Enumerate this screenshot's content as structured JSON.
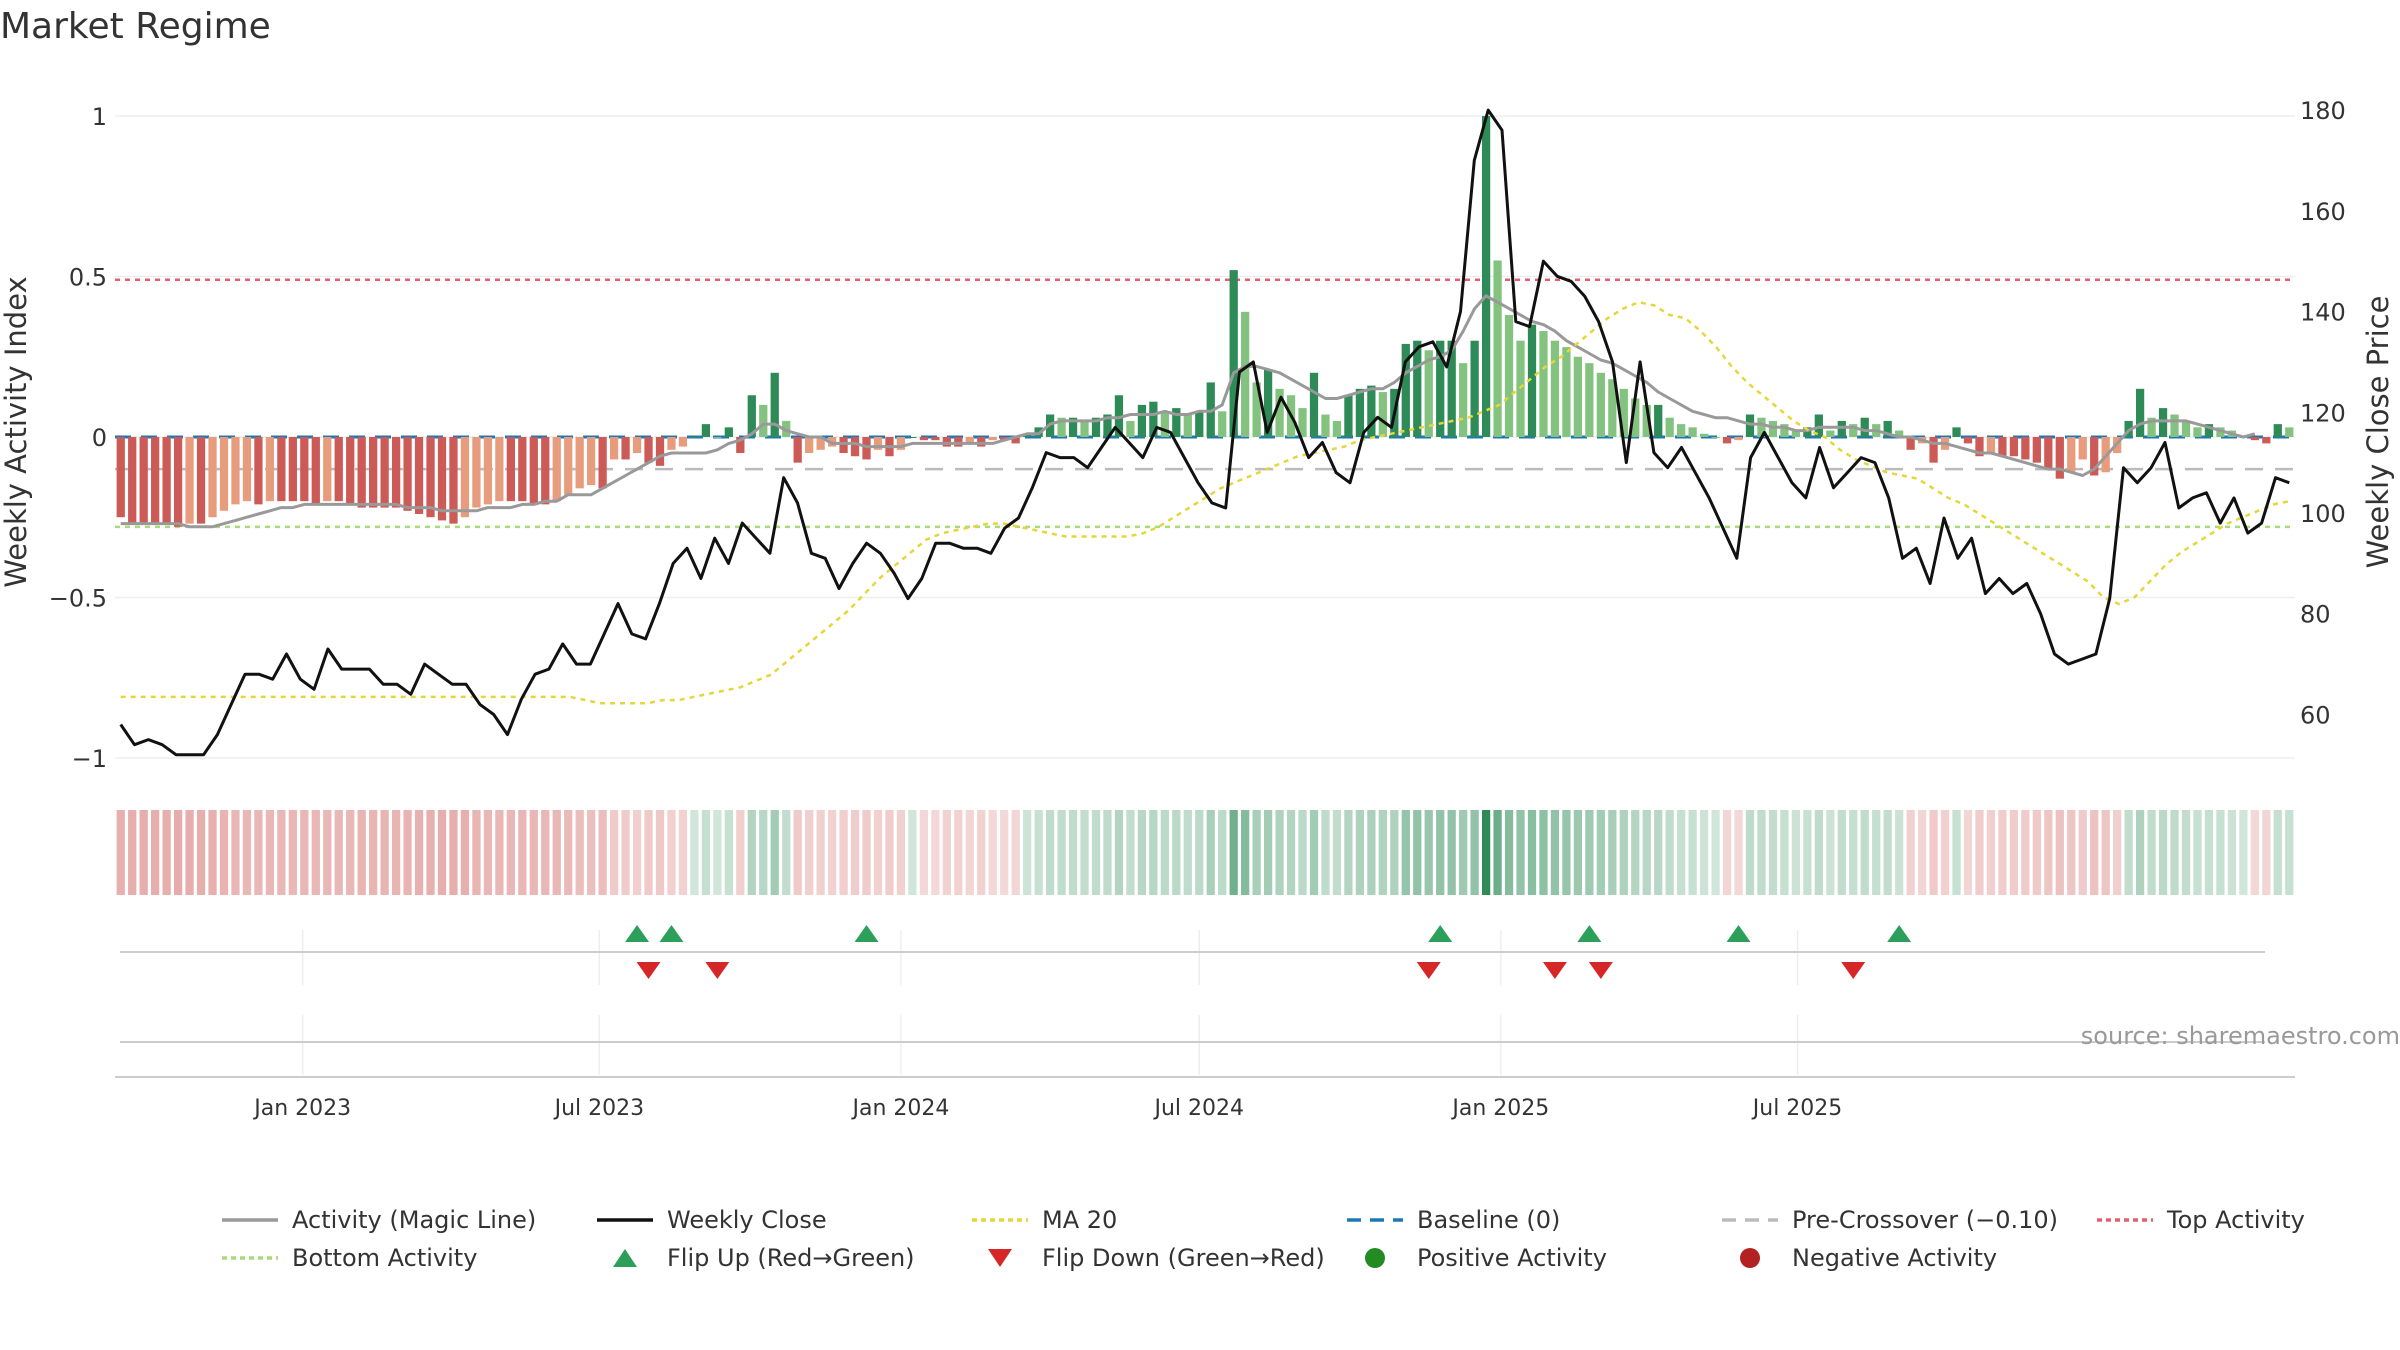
{
  "title": "Market Regime",
  "source": "source: sharemaestro.com",
  "colors": {
    "pos_dark": "#2e8b57",
    "pos_light": "#84c37f",
    "neg_dark": "#cc5a56",
    "neg_light": "#e89c7e",
    "close": "#111111",
    "magic": "#999999",
    "ma20": "#e5d63a",
    "baseline": "#1f77b4",
    "precross": "#bbbbbb",
    "top": "#e06070",
    "bottom": "#a8dc7a",
    "flip_up": "#2ca05a",
    "flip_down": "#d62728",
    "pos_dot": "#228b22",
    "neg_dot": "#b22222"
  },
  "chart_data": {
    "type": "bar",
    "x_start": "2022-09-12",
    "x_step_days": 7,
    "x_ticks": [
      "Jan 2023",
      "Jul 2023",
      "Jan 2024",
      "Jul 2024",
      "Jan 2025",
      "Jul 2025"
    ],
    "y_left": {
      "label": "Weekly Activity Index",
      "range": [
        -1.1,
        1.05
      ],
      "ticks": [
        1,
        0.5,
        0,
        -0.5,
        -1
      ],
      "tick_labels": [
        "1",
        "0.5",
        "0",
        "−0.5",
        "−1"
      ]
    },
    "y_right": {
      "label": "Weekly Close Price",
      "range": [
        45,
        182
      ],
      "ticks": [
        180,
        160,
        140,
        120,
        100,
        80,
        60
      ],
      "tick_labels": [
        "180",
        "160",
        "140",
        "120",
        "100",
        "80",
        "60"
      ]
    },
    "activity": [
      -0.25,
      -0.27,
      -0.27,
      -0.27,
      -0.27,
      -0.28,
      -0.27,
      -0.27,
      -0.25,
      -0.23,
      -0.21,
      -0.2,
      -0.21,
      -0.2,
      -0.2,
      -0.2,
      -0.2,
      -0.21,
      -0.2,
      -0.2,
      -0.21,
      -0.22,
      -0.22,
      -0.22,
      -0.22,
      -0.23,
      -0.24,
      -0.25,
      -0.26,
      -0.27,
      -0.25,
      -0.22,
      -0.21,
      -0.2,
      -0.2,
      -0.2,
      -0.21,
      -0.21,
      -0.2,
      -0.18,
      -0.16,
      -0.15,
      -0.16,
      -0.07,
      -0.07,
      -0.05,
      -0.08,
      -0.09,
      -0.04,
      -0.03,
      0,
      0.04,
      0,
      0.03,
      -0.05,
      0.13,
      0.1,
      0.2,
      0.05,
      -0.08,
      -0.05,
      -0.04,
      -0.03,
      -0.05,
      -0.06,
      -0.07,
      -0.04,
      -0.06,
      -0.04,
      0,
      -0.01,
      -0.01,
      -0.03,
      -0.03,
      -0.02,
      -0.03,
      -0.01,
      -0.01,
      -0.02,
      0.01,
      0.03,
      0.07,
      0.06,
      0.06,
      0.05,
      0.06,
      0.07,
      0.13,
      0.05,
      0.1,
      0.11,
      0.08,
      0.09,
      0.07,
      0.08,
      0.17,
      0.08,
      0.52,
      0.39,
      0.17,
      0.21,
      0.15,
      0.13,
      0.09,
      0.2,
      0.07,
      0.05,
      0.13,
      0.15,
      0.16,
      0.14,
      0.15,
      0.29,
      0.3,
      0.27,
      0.3,
      0.3,
      0.23,
      0.3,
      1.0,
      0.55,
      0.38,
      0.3,
      0.35,
      0.33,
      0.3,
      0.28,
      0.25,
      0.23,
      0.2,
      0.18,
      0.15,
      0.12,
      0.1,
      0.1,
      0.06,
      0.04,
      0.03,
      0.01,
      0,
      -0.02,
      -0.01,
      0.07,
      0.06,
      0.05,
      0.04,
      0.02,
      0.03,
      0.07,
      0.02,
      0.05,
      0.04,
      0.06,
      0.04,
      0.05,
      0.02,
      -0.04,
      -0.02,
      -0.08,
      -0.04,
      0.03,
      -0.02,
      -0.06,
      -0.05,
      -0.06,
      -0.06,
      -0.07,
      -0.08,
      -0.1,
      -0.13,
      -0.11,
      -0.07,
      -0.12,
      -0.11,
      -0.05,
      0.05,
      0.15,
      0.06,
      0.09,
      0.07,
      0.05,
      0.03,
      0.04,
      0.03,
      0.02,
      0,
      -0.01,
      -0.02,
      0.04,
      0.03
    ],
    "magic_line": [
      -0.27,
      -0.27,
      -0.27,
      -0.27,
      -0.27,
      -0.27,
      -0.28,
      -0.28,
      -0.28,
      -0.27,
      -0.26,
      -0.25,
      -0.24,
      -0.23,
      -0.22,
      -0.22,
      -0.21,
      -0.21,
      -0.21,
      -0.21,
      -0.21,
      -0.21,
      -0.21,
      -0.21,
      -0.21,
      -0.22,
      -0.22,
      -0.22,
      -0.23,
      -0.23,
      -0.23,
      -0.23,
      -0.22,
      -0.22,
      -0.22,
      -0.21,
      -0.21,
      -0.2,
      -0.2,
      -0.18,
      -0.18,
      -0.18,
      -0.16,
      -0.14,
      -0.12,
      -0.1,
      -0.08,
      -0.06,
      -0.05,
      -0.05,
      -0.05,
      -0.05,
      -0.04,
      -0.02,
      -0.01,
      0.01,
      0.04,
      0.04,
      0.02,
      0.01,
      0,
      0,
      -0.02,
      -0.02,
      -0.02,
      -0.03,
      -0.03,
      -0.03,
      -0.03,
      -0.02,
      -0.02,
      -0.02,
      -0.02,
      -0.02,
      -0.02,
      -0.02,
      -0.02,
      -0.01,
      0,
      0.01,
      0.01,
      0.04,
      0.05,
      0.05,
      0.05,
      0.05,
      0.06,
      0.06,
      0.07,
      0.07,
      0.07,
      0.08,
      0.07,
      0.07,
      0.08,
      0.08,
      0.1,
      0.2,
      0.22,
      0.22,
      0.21,
      0.2,
      0.18,
      0.16,
      0.14,
      0.12,
      0.12,
      0.13,
      0.14,
      0.15,
      0.15,
      0.17,
      0.2,
      0.22,
      0.24,
      0.25,
      0.27,
      0.33,
      0.4,
      0.44,
      0.42,
      0.4,
      0.38,
      0.36,
      0.35,
      0.33,
      0.3,
      0.28,
      0.26,
      0.24,
      0.23,
      0.21,
      0.19,
      0.17,
      0.14,
      0.12,
      0.1,
      0.08,
      0.07,
      0.06,
      0.06,
      0.05,
      0.04,
      0.04,
      0.03,
      0.03,
      0.02,
      0.02,
      0.03,
      0.03,
      0.03,
      0.03,
      0.02,
      0.02,
      0.01,
      0,
      0,
      -0.01,
      -0.02,
      -0.02,
      -0.03,
      -0.04,
      -0.05,
      -0.05,
      -0.06,
      -0.07,
      -0.08,
      -0.09,
      -0.1,
      -0.1,
      -0.11,
      -0.12,
      -0.1,
      -0.06,
      -0.02,
      0.02,
      0.04,
      0.05,
      0.05,
      0.05,
      0.05,
      0.04,
      0.03,
      0.02,
      0.01,
      0,
      0.01
    ],
    "weekly_close": [
      58,
      54,
      55,
      54,
      52,
      52,
      52,
      56,
      62,
      68,
      68,
      67,
      72,
      67,
      65,
      73,
      69,
      69,
      69,
      66,
      66,
      64,
      70,
      68,
      66,
      66,
      62,
      60,
      56,
      63,
      68,
      69,
      74,
      70,
      70,
      76,
      82,
      76,
      75,
      82,
      90,
      93,
      87,
      95,
      90,
      98,
      95,
      92,
      107,
      102,
      92,
      91,
      85,
      90,
      94,
      92,
      88,
      83,
      87,
      94,
      94,
      93,
      93,
      92,
      97,
      99,
      105,
      112,
      111,
      111,
      109,
      113,
      117,
      114,
      111,
      117,
      116,
      111,
      106,
      102,
      101,
      128,
      130,
      116,
      123,
      118,
      111,
      114,
      108,
      106,
      116,
      119,
      117,
      130,
      133,
      134,
      129,
      140,
      170,
      180,
      176,
      138,
      137,
      150,
      147,
      146,
      143,
      138,
      130,
      110,
      130,
      112,
      109,
      113,
      108,
      103,
      97,
      91,
      111,
      116,
      111,
      106,
      103,
      113,
      105,
      108,
      111,
      110,
      103,
      91,
      93,
      86,
      99,
      91,
      95,
      84,
      87,
      84,
      86,
      80,
      72,
      70,
      71,
      72,
      83,
      109,
      106,
      109,
      114,
      101,
      103,
      104,
      98,
      103,
      96,
      98,
      107,
      106
    ],
    "ma20": [
      -0.81,
      -0.81,
      -0.81,
      -0.81,
      -0.81,
      -0.81,
      -0.81,
      -0.81,
      -0.81,
      -0.81,
      -0.81,
      -0.81,
      -0.81,
      -0.81,
      -0.81,
      -0.81,
      -0.81,
      -0.81,
      -0.81,
      -0.81,
      -0.81,
      -0.81,
      -0.81,
      -0.81,
      -0.81,
      -0.81,
      -0.81,
      -0.81,
      -0.81,
      -0.81,
      -0.82,
      -0.83,
      -0.83,
      -0.83,
      -0.83,
      -0.82,
      -0.82,
      -0.81,
      -0.8,
      -0.79,
      -0.78,
      -0.76,
      -0.74,
      -0.7,
      -0.66,
      -0.62,
      -0.58,
      -0.54,
      -0.49,
      -0.44,
      -0.4,
      -0.36,
      -0.32,
      -0.3,
      -0.29,
      -0.28,
      -0.27,
      -0.27,
      -0.28,
      -0.29,
      -0.3,
      -0.31,
      -0.31,
      -0.31,
      -0.31,
      -0.31,
      -0.3,
      -0.28,
      -0.25,
      -0.22,
      -0.19,
      -0.16,
      -0.14,
      -0.12,
      -0.1,
      -0.08,
      -0.06,
      -0.05,
      -0.04,
      -0.03,
      -0.01,
      0,
      0.01,
      0.02,
      0.03,
      0.04,
      0.05,
      0.06,
      0.08,
      0.1,
      0.14,
      0.18,
      0.22,
      0.25,
      0.29,
      0.33,
      0.37,
      0.4,
      0.42,
      0.41,
      0.38,
      0.37,
      0.33,
      0.28,
      0.22,
      0.17,
      0.13,
      0.09,
      0.05,
      0.02,
      0,
      -0.04,
      -0.07,
      -0.09,
      -0.11,
      -0.12,
      -0.13,
      -0.16,
      -0.19,
      -0.21,
      -0.24,
      -0.27,
      -0.3,
      -0.33,
      -0.36,
      -0.39,
      -0.42,
      -0.45,
      -0.5,
      -0.52,
      -0.5,
      -0.45,
      -0.4,
      -0.36,
      -0.33,
      -0.3,
      -0.27,
      -0.25,
      -0.23,
      -0.21,
      -0.2
    ],
    "baseline": 0,
    "pre_crossover": -0.1,
    "top_activity": 0.49,
    "bottom_activity": -0.28,
    "flip_up_weeks": [
      45,
      48,
      65,
      115,
      128,
      141,
      155
    ],
    "flip_down_weeks": [
      46,
      52,
      114,
      125,
      129,
      151
    ],
    "legend": [
      {
        "key": "magic",
        "label": "Activity (Magic Line)"
      },
      {
        "key": "close",
        "label": "Weekly Close"
      },
      {
        "key": "ma20",
        "label": "MA 20"
      },
      {
        "key": "baseline",
        "label": "Baseline (0)"
      },
      {
        "key": "precross",
        "label": "Pre-Crossover (−0.10)"
      },
      {
        "key": "top",
        "label": "Top Activity"
      },
      {
        "key": "bottom",
        "label": "Bottom Activity"
      },
      {
        "key": "flip_up",
        "label": "Flip Up (Red→Green)"
      },
      {
        "key": "flip_down",
        "label": "Flip Down (Green→Red)"
      },
      {
        "key": "pos_dot",
        "label": "Positive Activity"
      },
      {
        "key": "neg_dot",
        "label": "Negative Activity"
      }
    ]
  }
}
